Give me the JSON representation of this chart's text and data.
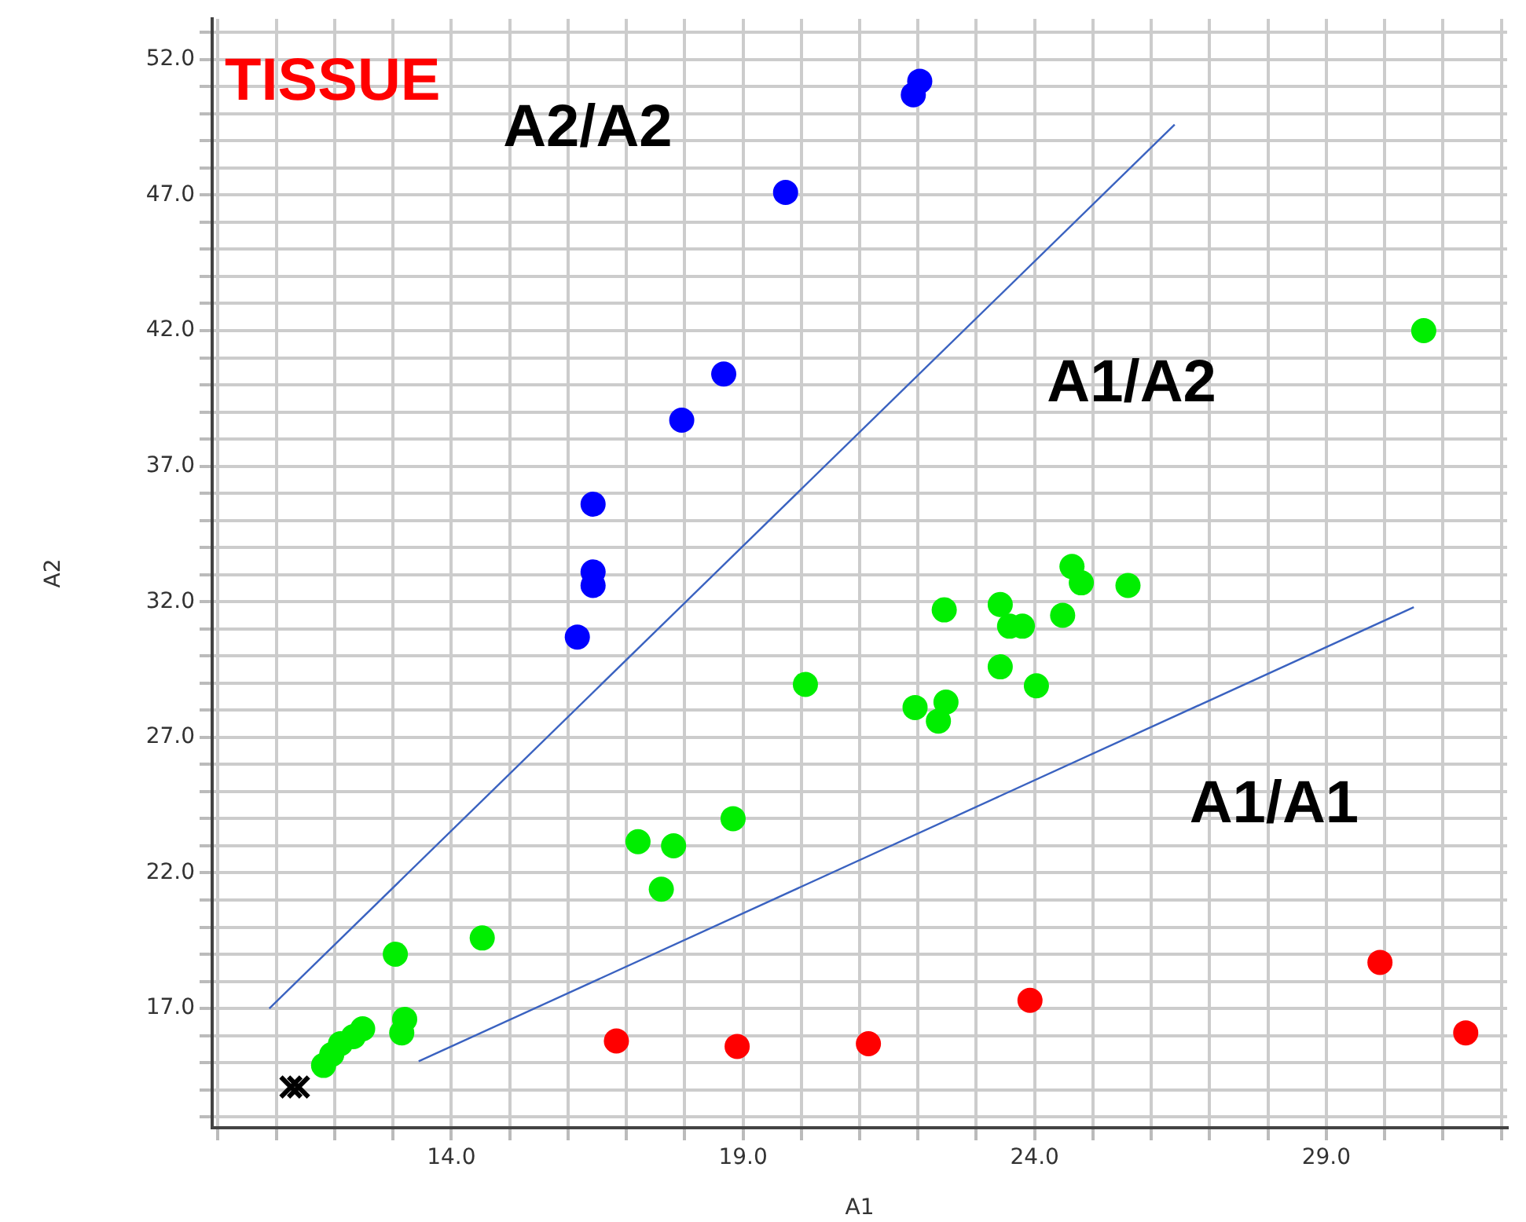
{
  "chart_data": {
    "type": "scatter",
    "title": "TISSUE",
    "xlabel": "A1",
    "ylabel": "A2",
    "xlim": [
      9.9,
      32.1
    ],
    "ylim": [
      12.6,
      53.5
    ],
    "xticks": [
      {
        "value": 10,
        "label": null
      },
      {
        "value": 11,
        "label": null
      },
      {
        "value": 12,
        "label": null
      },
      {
        "value": 13,
        "label": null
      },
      {
        "value": 14,
        "label": "14.0"
      },
      {
        "value": 15,
        "label": null
      },
      {
        "value": 16,
        "label": null
      },
      {
        "value": 17,
        "label": null
      },
      {
        "value": 18,
        "label": null
      },
      {
        "value": 19,
        "label": "19.0"
      },
      {
        "value": 20,
        "label": null
      },
      {
        "value": 21,
        "label": null
      },
      {
        "value": 22,
        "label": null
      },
      {
        "value": 23,
        "label": null
      },
      {
        "value": 24,
        "label": "24.0"
      },
      {
        "value": 25,
        "label": null
      },
      {
        "value": 26,
        "label": null
      },
      {
        "value": 27,
        "label": null
      },
      {
        "value": 28,
        "label": null
      },
      {
        "value": 29,
        "label": "29.0"
      },
      {
        "value": 30,
        "label": null
      },
      {
        "value": 31,
        "label": null
      },
      {
        "value": 32,
        "label": null
      }
    ],
    "yticks": [
      {
        "value": 13,
        "label": null
      },
      {
        "value": 14,
        "label": null
      },
      {
        "value": 15,
        "label": null
      },
      {
        "value": 16,
        "label": null
      },
      {
        "value": 17,
        "label": "17.0"
      },
      {
        "value": 18,
        "label": null
      },
      {
        "value": 19,
        "label": null
      },
      {
        "value": 20,
        "label": null
      },
      {
        "value": 21,
        "label": null
      },
      {
        "value": 22,
        "label": "22.0"
      },
      {
        "value": 23,
        "label": null
      },
      {
        "value": 24,
        "label": null
      },
      {
        "value": 25,
        "label": null
      },
      {
        "value": 26,
        "label": null
      },
      {
        "value": 27,
        "label": "27.0"
      },
      {
        "value": 28,
        "label": null
      },
      {
        "value": 29,
        "label": null
      },
      {
        "value": 30,
        "label": null
      },
      {
        "value": 31,
        "label": null
      },
      {
        "value": 32,
        "label": "32.0"
      },
      {
        "value": 33,
        "label": null
      },
      {
        "value": 34,
        "label": null
      },
      {
        "value": 35,
        "label": null
      },
      {
        "value": 36,
        "label": null
      },
      {
        "value": 37,
        "label": "37.0"
      },
      {
        "value": 38,
        "label": null
      },
      {
        "value": 39,
        "label": null
      },
      {
        "value": 40,
        "label": null
      },
      {
        "value": 41,
        "label": null
      },
      {
        "value": 42,
        "label": "42.0"
      },
      {
        "value": 43,
        "label": null
      },
      {
        "value": 44,
        "label": null
      },
      {
        "value": 45,
        "label": null
      },
      {
        "value": 46,
        "label": null
      },
      {
        "value": 47,
        "label": "47.0"
      },
      {
        "value": 48,
        "label": null
      },
      {
        "value": 49,
        "label": null
      },
      {
        "value": 50,
        "label": null
      },
      {
        "value": 51,
        "label": null
      },
      {
        "value": 52,
        "label": "52.0"
      },
      {
        "value": 53,
        "label": null
      }
    ],
    "grid": true,
    "legend": false,
    "series": [
      {
        "type": "scatter",
        "marker": "circle",
        "color": "#0000ff",
        "x": [
          22.03,
          21.92,
          19.73,
          18.67,
          17.95,
          16.43,
          16.43,
          16.43,
          16.16
        ],
        "values": [
          51.2,
          50.7,
          47.1,
          40.4,
          38.7,
          35.6,
          33.1,
          32.6,
          30.7
        ]
      },
      {
        "type": "scatter",
        "marker": "circle",
        "color": "#00ee00",
        "x": [
          30.67,
          24.64,
          24.8,
          25.6,
          22.45,
          23.41,
          23.57,
          23.79,
          24.48,
          23.41,
          24.03,
          20.07,
          21.95,
          22.48,
          22.35,
          17.2,
          17.81,
          17.6,
          18.83,
          14.53,
          13.04,
          13.2,
          13.15,
          12.48,
          12.32,
          12.1,
          11.95,
          11.81
        ],
        "values": [
          42.0,
          33.3,
          32.7,
          32.6,
          31.7,
          31.9,
          31.1,
          31.1,
          31.5,
          29.6,
          28.9,
          28.95,
          28.1,
          28.3,
          27.6,
          23.15,
          23.0,
          21.4,
          24.0,
          19.6,
          19.0,
          16.6,
          16.1,
          16.25,
          15.96,
          15.7,
          15.3,
          14.9
        ]
      },
      {
        "type": "scatter",
        "marker": "circle",
        "color": "#ff0000",
        "x": [
          16.83,
          18.9,
          21.15,
          23.92,
          29.92,
          31.39
        ],
        "values": [
          15.8,
          15.6,
          15.7,
          17.3,
          18.7,
          16.1
        ]
      },
      {
        "type": "scatter",
        "marker": "cross",
        "color": "#000000",
        "x": [
          11.25,
          11.38
        ],
        "values": [
          14.1,
          14.1
        ]
      },
      {
        "type": "line",
        "marker": "none",
        "color": "#3a62c0",
        "x": [
          10.88,
          26.4
        ],
        "values": [
          17.0,
          49.6
        ]
      },
      {
        "type": "line",
        "marker": "none",
        "color": "#3a62c0",
        "x": [
          13.44,
          30.5
        ],
        "values": [
          15.05,
          31.8
        ]
      }
    ],
    "annotations": [
      "A2/A2",
      "A1/A2",
      "A1/A1"
    ]
  }
}
